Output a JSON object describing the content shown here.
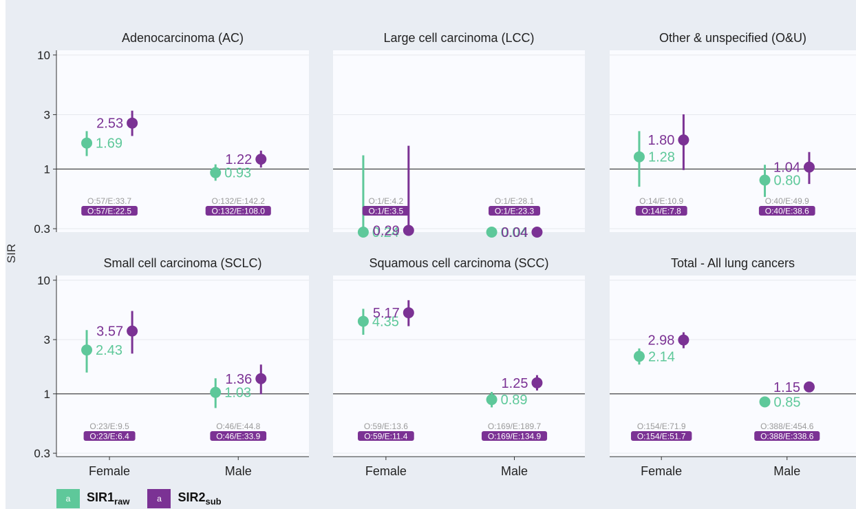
{
  "chart_data": {
    "type": "scatter",
    "title": "",
    "ylabel": "SIR",
    "yscale": "log",
    "ylim": [
      0.28,
      11
    ],
    "yticks": [
      0.3,
      1,
      3,
      10
    ],
    "ytick_labels": [
      "0.3",
      "1",
      "3",
      "10"
    ],
    "reference_line": 1,
    "categories": [
      "Female",
      "Male"
    ],
    "legend": {
      "placement": "bottom-left",
      "key_text": "a",
      "entries": [
        {
          "name": "SIR1",
          "sub": "raw",
          "color": "#5ec89a"
        },
        {
          "name": "SIR2",
          "sub": "sub",
          "color": "#7b3294"
        }
      ]
    },
    "panels": [
      {
        "title": "Adenocarcinoma (AC)",
        "groups": [
          {
            "category": "Female",
            "sir1": {
              "value": 1.69,
              "lo": 1.3,
              "hi": 2.15,
              "label": "1.69",
              "obs": "O:57/E:33.7"
            },
            "sir2": {
              "value": 2.53,
              "lo": 1.95,
              "hi": 3.25,
              "label": "2.53",
              "obs": "O:57/E:22.5"
            }
          },
          {
            "category": "Male",
            "sir1": {
              "value": 0.93,
              "lo": 0.79,
              "hi": 1.1,
              "label": "0.93",
              "obs": "O:132/E:142.2"
            },
            "sir2": {
              "value": 1.22,
              "lo": 1.03,
              "hi": 1.45,
              "label": "1.22",
              "obs": "O:132/E:108.0"
            }
          }
        ]
      },
      {
        "title": "Large cell carcinoma (LCC)",
        "groups": [
          {
            "category": "Female",
            "sir1": {
              "value": 0.24,
              "lo": 0.0,
              "hi": 1.32,
              "label": "0.24",
              "obs": "O:1/E:4.2"
            },
            "sir2": {
              "value": 0.29,
              "lo": 0.0,
              "hi": 1.6,
              "label": "0.29",
              "obs": "O:1/E:3.5"
            }
          },
          {
            "category": "Male",
            "sir1": {
              "value": 0.036,
              "lo": 0.0,
              "hi": 0.2,
              "label": "0.04",
              "obs": "O:1/E:28.1"
            },
            "sir2": {
              "value": 0.043,
              "lo": 0.0,
              "hi": 0.24,
              "label": "0.04",
              "obs": "O:1/E:23.3"
            }
          }
        ]
      },
      {
        "title": "Other & unspecified (O&U)",
        "groups": [
          {
            "category": "Female",
            "sir1": {
              "value": 1.28,
              "lo": 0.7,
              "hi": 2.15,
              "label": "1.28",
              "obs": "O:14/E:10.9"
            },
            "sir2": {
              "value": 1.8,
              "lo": 0.98,
              "hi": 3.02,
              "label": "1.80",
              "obs": "O:14/E:7.8"
            }
          },
          {
            "category": "Male",
            "sir1": {
              "value": 0.8,
              "lo": 0.57,
              "hi": 1.09,
              "label": "0.80",
              "obs": "O:40/E:49.9"
            },
            "sir2": {
              "value": 1.04,
              "lo": 0.74,
              "hi": 1.41,
              "label": "1.04",
              "obs": "O:40/E:38.6"
            }
          }
        ]
      },
      {
        "title": "Small cell carcinoma (SCLC)",
        "groups": [
          {
            "category": "Female",
            "sir1": {
              "value": 2.43,
              "lo": 1.54,
              "hi": 3.64,
              "label": "2.43",
              "obs": "O:23/E:9.5"
            },
            "sir2": {
              "value": 3.57,
              "lo": 2.26,
              "hi": 5.36,
              "label": "3.57",
              "obs": "O:23/E:6.4"
            }
          },
          {
            "category": "Male",
            "sir1": {
              "value": 1.03,
              "lo": 0.75,
              "hi": 1.37,
              "label": "1.03",
              "obs": "O:46/E:44.8"
            },
            "sir2": {
              "value": 1.36,
              "lo": 0.99,
              "hi": 1.81,
              "label": "1.36",
              "obs": "O:46/E:33.9"
            }
          }
        ]
      },
      {
        "title": "Squamous cell carcinoma (SCC)",
        "groups": [
          {
            "category": "Female",
            "sir1": {
              "value": 4.35,
              "lo": 3.31,
              "hi": 5.6,
              "label": "4.35",
              "obs": "O:59/E:13.6"
            },
            "sir2": {
              "value": 5.17,
              "lo": 3.94,
              "hi": 6.67,
              "label": "5.17",
              "obs": "O:59/E:11.4"
            }
          },
          {
            "category": "Male",
            "sir1": {
              "value": 0.89,
              "lo": 0.76,
              "hi": 1.04,
              "label": "0.89",
              "obs": "O:169/E:189.7"
            },
            "sir2": {
              "value": 1.25,
              "lo": 1.07,
              "hi": 1.46,
              "label": "1.25",
              "obs": "O:169/E:134.9"
            }
          }
        ]
      },
      {
        "title": "Total - All lung cancers",
        "groups": [
          {
            "category": "Female",
            "sir1": {
              "value": 2.14,
              "lo": 1.81,
              "hi": 2.51,
              "label": "2.14",
              "obs": "O:154/E:71.9"
            },
            "sir2": {
              "value": 2.98,
              "lo": 2.52,
              "hi": 3.48,
              "label": "2.98",
              "obs": "O:154/E:51.7"
            }
          },
          {
            "category": "Male",
            "sir1": {
              "value": 0.85,
              "lo": 0.77,
              "hi": 0.94,
              "label": "0.85",
              "obs": "O:388/E:454.6"
            },
            "sir2": {
              "value": 1.15,
              "lo": 1.04,
              "hi": 1.27,
              "label": "1.15",
              "obs": "O:388/E:338.6"
            }
          }
        ]
      }
    ]
  }
}
